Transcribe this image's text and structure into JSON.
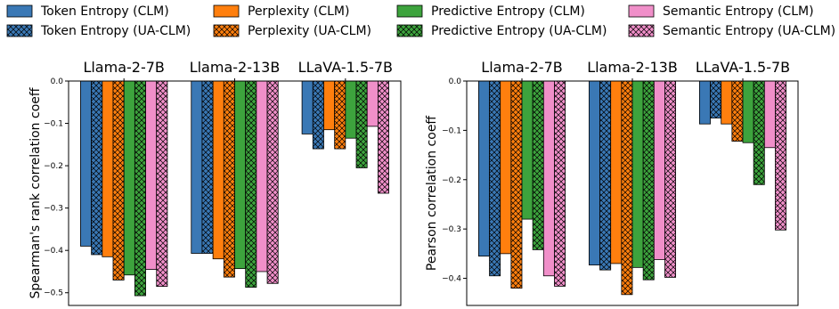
{
  "chart_data": {
    "legend": {
      "placement": "top",
      "entries": [
        {
          "label": "Token Entropy (CLM)",
          "color": "#3a78b5",
          "hatch": false
        },
        {
          "label": "Token Entropy (UA-CLM)",
          "color": "#3a78b5",
          "hatch": true
        },
        {
          "label": "Perplexity (CLM)",
          "color": "#ff7f0e",
          "hatch": false
        },
        {
          "label": "Perplexity (UA-CLM)",
          "color": "#ff7f0e",
          "hatch": true
        },
        {
          "label": "Predictive Entropy (CLM)",
          "color": "#3da33d",
          "hatch": false
        },
        {
          "label": "Predictive Entropy (UA-CLM)",
          "color": "#3da33d",
          "hatch": true
        },
        {
          "label": "Semantic Entropy (CLM)",
          "color": "#f08fc9",
          "hatch": false
        },
        {
          "label": "Semantic Entropy (UA-CLM)",
          "color": "#f08fc9",
          "hatch": true
        }
      ]
    },
    "charts": [
      {
        "type": "bar",
        "ylabel": "Spearman's rank correlation coeff",
        "ylim": [
          -0.53,
          0.0
        ],
        "yticks": [
          0.0,
          -0.1,
          -0.2,
          -0.3,
          -0.4,
          -0.5
        ],
        "yticklabels": [
          "0.0",
          "−0.1",
          "−0.2",
          "−0.3",
          "−0.4",
          "−0.5"
        ],
        "categories": [
          "Llama-2-7B",
          "Llama-2-13B",
          "LLaVA-1.5-7B"
        ],
        "values": [
          [
            -0.39,
            -0.41,
            -0.415,
            -0.47,
            -0.458,
            -0.507,
            -0.445,
            -0.485
          ],
          [
            -0.407,
            -0.407,
            -0.42,
            -0.463,
            -0.443,
            -0.487,
            -0.45,
            -0.478
          ],
          [
            -0.125,
            -0.16,
            -0.115,
            -0.16,
            -0.135,
            -0.205,
            -0.107,
            -0.265
          ]
        ]
      },
      {
        "type": "bar",
        "ylabel": "Pearson correlation coeff",
        "ylim": [
          -0.455,
          0.0
        ],
        "yticks": [
          0.0,
          -0.1,
          -0.2,
          -0.3,
          -0.4
        ],
        "yticklabels": [
          "0.0",
          "−0.1",
          "−0.2",
          "−0.3",
          "−0.4"
        ],
        "categories": [
          "Llama-2-7B",
          "Llama-2-13B",
          "LLaVA-1.5-7B"
        ],
        "values": [
          [
            -0.355,
            -0.395,
            -0.35,
            -0.42,
            -0.28,
            -0.342,
            -0.395,
            -0.416
          ],
          [
            -0.373,
            -0.383,
            -0.37,
            -0.433,
            -0.378,
            -0.403,
            -0.362,
            -0.398
          ],
          [
            -0.087,
            -0.075,
            -0.087,
            -0.122,
            -0.125,
            -0.21,
            -0.135,
            -0.302
          ]
        ]
      }
    ]
  }
}
